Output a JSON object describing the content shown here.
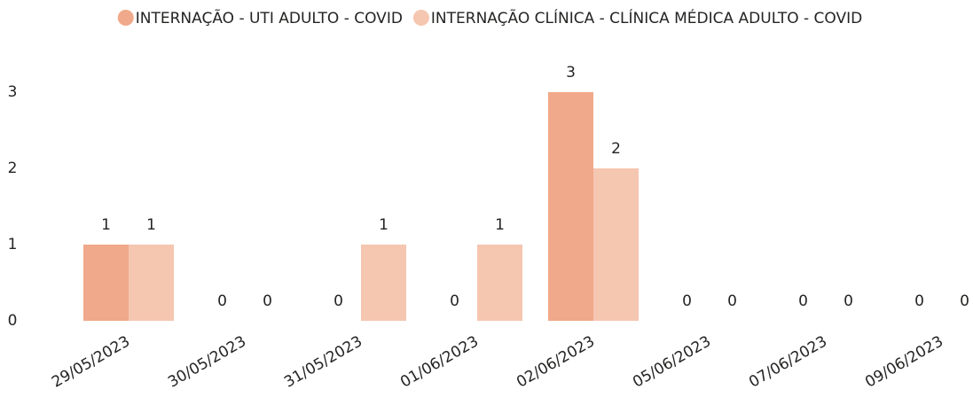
{
  "chart_data": {
    "type": "bar",
    "categories": [
      "29/05/2023",
      "30/05/2023",
      "31/05/2023",
      "01/06/2023",
      "02/06/2023",
      "05/06/2023",
      "07/06/2023",
      "09/06/2023"
    ],
    "series": [
      {
        "name": "INTERNAÇÃO - UTI ADULTO - COVID",
        "color": "#f0a98a",
        "values": [
          1,
          0,
          0,
          0,
          3,
          0,
          0,
          0
        ]
      },
      {
        "name": "INTERNAÇÃO CLÍNICA - CLÍNICA MÉDICA ADULTO - COVID",
        "color": "#f5c6b0",
        "values": [
          1,
          0,
          1,
          1,
          2,
          0,
          0,
          0
        ]
      }
    ],
    "ylim": [
      0,
      3
    ],
    "yticks": [
      0,
      1,
      2,
      3
    ],
    "grid": false,
    "legend": "top"
  }
}
